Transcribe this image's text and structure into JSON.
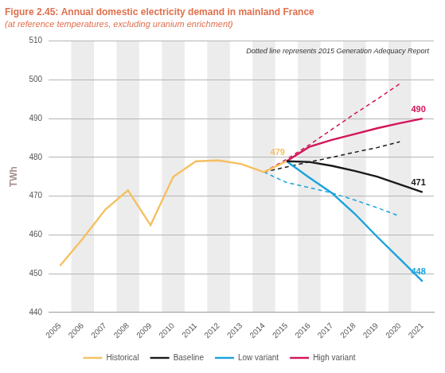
{
  "chart_data": {
    "type": "line",
    "title": "Figure 2.45: Annual domestic electricity demand in mainland France",
    "subtitle": "(at reference temperatures, excluding uranium enrichment)",
    "y_label": "TWh",
    "annotation": "Dotted line represents 2015 Generation Adequacy Report",
    "categories": [
      "2005",
      "2006",
      "2007",
      "2008",
      "2009",
      "2010",
      "2011",
      "2012",
      "2013",
      "2014",
      "2015",
      "2016",
      "2017",
      "2018",
      "2019",
      "2020",
      "2021"
    ],
    "series": [
      {
        "name": "Historical",
        "color": "#f5c062",
        "values": [
          452,
          459,
          466.5,
          471.5,
          462.5,
          475,
          479,
          479.2,
          478.3,
          476.2,
          479,
          null,
          null,
          null,
          null,
          null,
          null
        ],
        "value_labels": [
          null,
          null,
          null,
          null,
          null,
          null,
          null,
          null,
          null,
          null,
          "479",
          null,
          null,
          null,
          null,
          null,
          null
        ]
      },
      {
        "name": "Baseline",
        "color": "#1a1a1a",
        "values": [
          null,
          null,
          null,
          null,
          null,
          null,
          null,
          null,
          null,
          null,
          479,
          478.8,
          477.8,
          476.5,
          475,
          473,
          471
        ],
        "value_labels": [
          null,
          null,
          null,
          null,
          null,
          null,
          null,
          null,
          null,
          null,
          null,
          null,
          null,
          null,
          null,
          null,
          "471"
        ]
      },
      {
        "name": "Low variant",
        "color": "#1aa3dd",
        "values": [
          null,
          null,
          null,
          null,
          null,
          null,
          null,
          null,
          null,
          null,
          479,
          474.8,
          470.8,
          465.5,
          459.5,
          453.8,
          448
        ],
        "value_labels": [
          null,
          null,
          null,
          null,
          null,
          null,
          null,
          null,
          null,
          null,
          null,
          null,
          null,
          null,
          null,
          null,
          "448"
        ]
      },
      {
        "name": "High variant",
        "color": "#d4145a",
        "values": [
          null,
          null,
          null,
          null,
          null,
          null,
          null,
          null,
          null,
          null,
          479,
          482.7,
          484.5,
          486,
          487.5,
          488.8,
          490
        ],
        "value_labels": [
          null,
          null,
          null,
          null,
          null,
          null,
          null,
          null,
          null,
          null,
          null,
          null,
          null,
          null,
          null,
          null,
          "490"
        ]
      },
      {
        "color": "#1a1a1a",
        "line_style": "dashed",
        "values": [
          null,
          null,
          null,
          null,
          null,
          null,
          null,
          null,
          null,
          476.2,
          477.5,
          478.8,
          480,
          481.3,
          482.5,
          484,
          null
        ]
      },
      {
        "color": "#1aa3dd",
        "line_style": "dashed",
        "values": [
          null,
          null,
          null,
          null,
          null,
          null,
          null,
          null,
          null,
          476.2,
          473.5,
          472.2,
          470.8,
          469,
          467,
          464.8,
          null
        ]
      },
      {
        "color": "#d4145a",
        "line_style": "dashed",
        "values": [
          null,
          null,
          null,
          null,
          null,
          null,
          null,
          null,
          null,
          476.2,
          479.5,
          483.2,
          487.2,
          491.2,
          495,
          499,
          null
        ]
      }
    ],
    "ylim": [
      440,
      510
    ],
    "yticks": [
      440,
      450,
      460,
      470,
      480,
      490,
      500,
      510
    ],
    "grid": true,
    "legend": "bottom"
  }
}
